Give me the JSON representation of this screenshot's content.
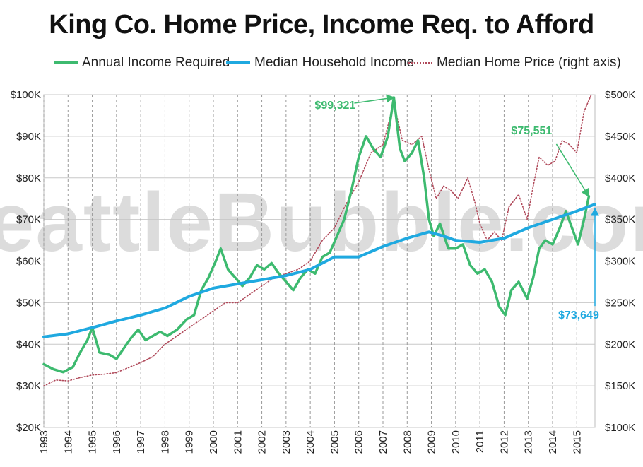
{
  "watermark": "SeattleBubble.com",
  "chart_data": {
    "type": "line",
    "title": "King Co. Home Price, Income Req. to Afford",
    "grid": true,
    "legend_placement": "top",
    "x_range": [
      1993.0,
      2015.75
    ],
    "x_tick_labels": [
      "1993",
      "1994",
      "1995",
      "1996",
      "1997",
      "1998",
      "1999",
      "2000",
      "2001",
      "2002",
      "2003",
      "2004",
      "2005",
      "2006",
      "2007",
      "2008",
      "2009",
      "2010",
      "2011",
      "2012",
      "2013",
      "2014",
      "2015"
    ],
    "y_left": {
      "range": [
        20000,
        100000
      ],
      "tick_labels": [
        "$20K",
        "$30K",
        "$40K",
        "$50K",
        "$60K",
        "$70K",
        "$80K",
        "$90K",
        "$100K"
      ]
    },
    "y_right": {
      "range": [
        100000,
        500000
      ],
      "tick_labels": [
        "$100K",
        "$150K",
        "$200K",
        "$250K",
        "$300K",
        "$350K",
        "$400K",
        "$450K",
        "$500K"
      ]
    },
    "series": [
      {
        "name": "Annual Income Required",
        "axis": "left",
        "color": "#3dba6f",
        "style": "solid",
        "points": [
          [
            1993.0,
            35200
          ],
          [
            1993.4,
            34000
          ],
          [
            1993.8,
            33300
          ],
          [
            1994.2,
            34500
          ],
          [
            1994.5,
            38000
          ],
          [
            1994.8,
            41000
          ],
          [
            1995.0,
            44000
          ],
          [
            1995.3,
            38000
          ],
          [
            1995.7,
            37500
          ],
          [
            1996.0,
            36500
          ],
          [
            1996.3,
            39000
          ],
          [
            1996.6,
            41500
          ],
          [
            1996.9,
            43500
          ],
          [
            1997.2,
            41000
          ],
          [
            1997.5,
            42000
          ],
          [
            1997.8,
            43000
          ],
          [
            1998.1,
            42000
          ],
          [
            1998.5,
            43500
          ],
          [
            1998.9,
            46000
          ],
          [
            1999.2,
            47000
          ],
          [
            1999.5,
            53000
          ],
          [
            1999.8,
            56000
          ],
          [
            2000.1,
            60000
          ],
          [
            2000.3,
            63000
          ],
          [
            2000.6,
            58000
          ],
          [
            2000.9,
            56000
          ],
          [
            2001.2,
            54000
          ],
          [
            2001.5,
            56000
          ],
          [
            2001.8,
            59000
          ],
          [
            2002.1,
            58000
          ],
          [
            2002.4,
            59500
          ],
          [
            2002.7,
            57000
          ],
          [
            2003.0,
            55000
          ],
          [
            2003.3,
            53000
          ],
          [
            2003.6,
            56000
          ],
          [
            2003.9,
            58000
          ],
          [
            2004.2,
            57000
          ],
          [
            2004.5,
            61000
          ],
          [
            2004.8,
            62000
          ],
          [
            2005.1,
            66000
          ],
          [
            2005.4,
            70000
          ],
          [
            2005.7,
            77000
          ],
          [
            2006.0,
            85000
          ],
          [
            2006.3,
            90000
          ],
          [
            2006.6,
            87000
          ],
          [
            2006.9,
            85000
          ],
          [
            2007.2,
            90000
          ],
          [
            2007.45,
            99321
          ],
          [
            2007.7,
            87000
          ],
          [
            2007.9,
            84000
          ],
          [
            2008.2,
            86000
          ],
          [
            2008.45,
            89000
          ],
          [
            2008.7,
            80000
          ],
          [
            2008.9,
            70000
          ],
          [
            2009.1,
            66000
          ],
          [
            2009.35,
            69000
          ],
          [
            2009.7,
            63000
          ],
          [
            2010.0,
            63000
          ],
          [
            2010.3,
            64000
          ],
          [
            2010.6,
            59000
          ],
          [
            2010.9,
            57000
          ],
          [
            2011.2,
            58000
          ],
          [
            2011.5,
            55000
          ],
          [
            2011.8,
            49000
          ],
          [
            2012.05,
            47000
          ],
          [
            2012.3,
            53000
          ],
          [
            2012.6,
            55000
          ],
          [
            2012.95,
            51000
          ],
          [
            2013.2,
            56000
          ],
          [
            2013.45,
            63000
          ],
          [
            2013.7,
            65000
          ],
          [
            2014.0,
            64000
          ],
          [
            2014.3,
            68000
          ],
          [
            2014.55,
            72000
          ],
          [
            2014.8,
            68000
          ],
          [
            2015.05,
            64000
          ],
          [
            2015.3,
            70000
          ],
          [
            2015.5,
            75551
          ]
        ]
      },
      {
        "name": "Median Household Income",
        "axis": "left",
        "color": "#1fa9e0",
        "style": "solid",
        "points": [
          [
            1993.0,
            41800
          ],
          [
            1994.0,
            42500
          ],
          [
            1995.0,
            44000
          ],
          [
            1996.0,
            45600
          ],
          [
            1997.0,
            47000
          ],
          [
            1998.0,
            48700
          ],
          [
            1999.0,
            51500
          ],
          [
            2000.0,
            53500
          ],
          [
            2001.0,
            54500
          ],
          [
            2002.0,
            55500
          ],
          [
            2003.0,
            56500
          ],
          [
            2004.0,
            58000
          ],
          [
            2005.0,
            61000
          ],
          [
            2006.0,
            61000
          ],
          [
            2007.0,
            63500
          ],
          [
            2008.0,
            65500
          ],
          [
            2008.9,
            67000
          ],
          [
            2009.5,
            66000
          ],
          [
            2010.0,
            65000
          ],
          [
            2011.0,
            64500
          ],
          [
            2012.0,
            65500
          ],
          [
            2013.0,
            68000
          ],
          [
            2014.0,
            70000
          ],
          [
            2015.0,
            72000
          ],
          [
            2015.75,
            73649
          ]
        ]
      },
      {
        "name": "Median Home Price (right axis)",
        "axis": "right",
        "color": "#b0495a",
        "style": "dotted",
        "points": [
          [
            1993.0,
            150000
          ],
          [
            1993.5,
            157000
          ],
          [
            1994.0,
            156000
          ],
          [
            1994.5,
            160000
          ],
          [
            1995.0,
            163000
          ],
          [
            1995.5,
            164000
          ],
          [
            1996.0,
            166000
          ],
          [
            1996.5,
            172000
          ],
          [
            1997.0,
            178000
          ],
          [
            1997.5,
            185000
          ],
          [
            1998.0,
            200000
          ],
          [
            1998.5,
            210000
          ],
          [
            1999.0,
            220000
          ],
          [
            1999.5,
            230000
          ],
          [
            2000.0,
            240000
          ],
          [
            2000.5,
            250000
          ],
          [
            2001.0,
            250000
          ],
          [
            2001.5,
            260000
          ],
          [
            2002.0,
            270000
          ],
          [
            2002.5,
            280000
          ],
          [
            2003.0,
            285000
          ],
          [
            2003.5,
            290000
          ],
          [
            2004.0,
            300000
          ],
          [
            2004.5,
            325000
          ],
          [
            2005.0,
            340000
          ],
          [
            2005.5,
            370000
          ],
          [
            2006.0,
            395000
          ],
          [
            2006.5,
            430000
          ],
          [
            2007.0,
            440000
          ],
          [
            2007.45,
            490000
          ],
          [
            2007.8,
            445000
          ],
          [
            2008.2,
            440000
          ],
          [
            2008.6,
            450000
          ],
          [
            2008.9,
            410000
          ],
          [
            2009.2,
            375000
          ],
          [
            2009.5,
            390000
          ],
          [
            2009.8,
            385000
          ],
          [
            2010.1,
            375000
          ],
          [
            2010.5,
            400000
          ],
          [
            2010.8,
            370000
          ],
          [
            2011.0,
            345000
          ],
          [
            2011.3,
            325000
          ],
          [
            2011.6,
            335000
          ],
          [
            2011.9,
            325000
          ],
          [
            2012.2,
            365000
          ],
          [
            2012.6,
            380000
          ],
          [
            2012.95,
            350000
          ],
          [
            2013.2,
            390000
          ],
          [
            2013.45,
            425000
          ],
          [
            2013.8,
            415000
          ],
          [
            2014.1,
            420000
          ],
          [
            2014.4,
            445000
          ],
          [
            2014.7,
            440000
          ],
          [
            2015.0,
            430000
          ],
          [
            2015.3,
            480000
          ],
          [
            2015.6,
            500000
          ]
        ]
      }
    ],
    "annotations": [
      {
        "text": "$99,321",
        "series": "Annual Income Required",
        "x": 2007.45,
        "y": 99321,
        "color": "#3dba6f"
      },
      {
        "text": "$75,551",
        "series": "Annual Income Required",
        "x": 2015.5,
        "y": 75551,
        "color": "#3dba6f"
      },
      {
        "text": "$73,649",
        "series": "Median Household Income",
        "x": 2015.75,
        "y": 73649,
        "color": "#1fa9e0"
      }
    ]
  }
}
